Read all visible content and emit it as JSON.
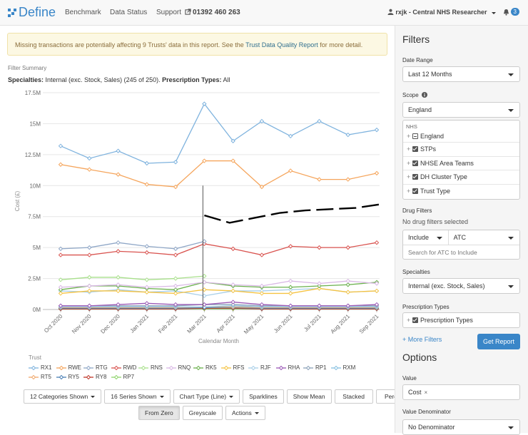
{
  "nav": {
    "brand": "Define",
    "links": [
      "Benchmark",
      "Data Status",
      "Support"
    ],
    "phone": "01392 460 263",
    "user": "rxjk - Central NHS Researcher",
    "notifications": "3"
  },
  "alert": {
    "text_before": "Missing transactions are potentially affecting 9 Trusts' data in this report. See the ",
    "link": "Trust Data Quality Report",
    "text_after": " for more detail."
  },
  "summary": {
    "title": "Filter Summary",
    "specialties_label": "Specialties:",
    "specialties_value": " Internal (exc. Stock, Sales) (245 of 250). ",
    "types_label": "Prescription Types:",
    "types_value": " All"
  },
  "chart_data": {
    "type": "line",
    "xlabel": "Calendar Month",
    "ylabel": "Cost (£)",
    "ylim": [
      0,
      17.5
    ],
    "yticks": [
      "0M",
      "2.5M",
      "5M",
      "7.5M",
      "10M",
      "12.5M",
      "15M",
      "17.5M"
    ],
    "categories": [
      "Oct 2020",
      "Nov 2020",
      "Dec 2020",
      "Jan 2021",
      "Feb 2021",
      "Mar 2021",
      "Apr 2021",
      "May 2021",
      "Jun 2021",
      "Jul 2021",
      "Aug 2021",
      "Sep 2021"
    ],
    "series": [
      {
        "name": "RX1",
        "color": "#7fb3de",
        "values": [
          13.2,
          12.2,
          12.8,
          11.8,
          11.9,
          16.6,
          13.6,
          15.2,
          14.0,
          15.2,
          14.1,
          14.5
        ]
      },
      {
        "name": "RWE",
        "color": "#f5a55c",
        "values": [
          11.7,
          11.3,
          10.9,
          10.1,
          9.9,
          12.0,
          12.0,
          9.9,
          11.2,
          10.5,
          10.5,
          11.0
        ]
      },
      {
        "name": "RTG",
        "color": "#8fa7c7",
        "values": [
          4.9,
          5.0,
          5.4,
          5.1,
          4.9,
          5.5,
          null,
          null,
          null,
          null,
          null,
          null
        ]
      },
      {
        "name": "RWD",
        "color": "#d9534f",
        "values": [
          4.4,
          4.4,
          4.7,
          4.6,
          4.4,
          5.3,
          4.9,
          4.4,
          5.1,
          5.0,
          5.0,
          5.4
        ]
      },
      {
        "name": "RNS",
        "color": "#a8e08b",
        "values": [
          2.4,
          2.6,
          2.6,
          2.4,
          2.5,
          2.7,
          null,
          null,
          null,
          null,
          null,
          null
        ]
      },
      {
        "name": "RNQ",
        "color": "#d9b8e5",
        "values": [
          1.8,
          1.9,
          2.0,
          1.8,
          1.9,
          2.2,
          2.0,
          1.9,
          2.3,
          2.1,
          2.3,
          2.1
        ]
      },
      {
        "name": "RK5",
        "color": "#6ab04c",
        "values": [
          1.6,
          1.9,
          1.9,
          1.7,
          1.6,
          2.2,
          1.9,
          1.8,
          1.8,
          1.9,
          2.0,
          2.2
        ]
      },
      {
        "name": "RFS",
        "color": "#f5c342",
        "values": [
          1.3,
          1.5,
          1.5,
          1.4,
          1.3,
          1.6,
          1.5,
          1.3,
          1.3,
          1.7,
          1.4,
          1.5
        ]
      },
      {
        "name": "RJF",
        "color": "#a9cfe8",
        "values": [
          1.5,
          1.4,
          1.6,
          1.4,
          1.5,
          1.1,
          1.5,
          1.5,
          1.6,
          1.7,
          1.4,
          1.5
        ]
      },
      {
        "name": "RHA",
        "color": "#9b59b6",
        "values": [
          0.3,
          0.3,
          0.4,
          0.5,
          0.4,
          0.4,
          0.6,
          0.4,
          0.3,
          0.3,
          0.3,
          0.4
        ]
      },
      {
        "name": "RP1",
        "color": "#8aa1b8",
        "values": [
          0.3,
          0.3,
          0.3,
          0.3,
          0.3,
          0.4,
          0.4,
          0.3,
          0.3,
          0.3,
          0.3,
          0.3
        ]
      },
      {
        "name": "RXM",
        "color": "#86c0e0",
        "values": [
          0.2,
          0.2,
          0.2,
          0.2,
          0.2,
          0.2,
          0.3,
          0.2,
          0.2,
          0.2,
          0.2,
          0.2
        ]
      },
      {
        "name": "RT5",
        "color": "#f0a86b",
        "values": [
          0.15,
          0.15,
          0.15,
          0.15,
          0.15,
          0.2,
          0.2,
          0.15,
          0.15,
          0.15,
          0.15,
          0.15
        ]
      },
      {
        "name": "RY5",
        "color": "#4a7fb5",
        "values": [
          0.1,
          0.1,
          0.1,
          0.1,
          0.1,
          0.15,
          0.15,
          0.1,
          0.1,
          0.1,
          0.1,
          0.1
        ]
      },
      {
        "name": "RY8",
        "color": "#c0392b",
        "values": [
          0.05,
          0.05,
          0.05,
          0.05,
          0.05,
          0.1,
          0.1,
          0.05,
          0.05,
          0.05,
          0.05,
          0.05
        ]
      },
      {
        "name": "RP7",
        "color": "#8ed46b",
        "values": [
          0.05,
          0.05,
          0.05,
          0.05,
          0.05,
          0.05,
          0.05,
          0.05,
          0.05,
          0.05,
          0.05,
          0.05
        ]
      }
    ],
    "annotation_dashed": [
      7.6,
      7.0,
      7.4,
      7.8,
      8.0,
      8.1,
      8.2,
      8.5
    ],
    "marker_month": "Mar 2021"
  },
  "legend_title": "Trust",
  "buttons": {
    "row1": [
      "12 Categories Shown",
      "16 Series Shown",
      "Chart Type (Line)",
      "Sparklines",
      "Show Mean",
      "Stacked",
      "Percent"
    ],
    "row2": [
      "From Zero",
      "Greyscale",
      "Actions"
    ]
  },
  "sidebar": {
    "filters_title": "Filters",
    "date_range_label": "Date Range",
    "date_range_value": "Last 12 Months",
    "scope_label": "Scope",
    "scope_value": "England",
    "tree_head": "NHS",
    "tree_items": [
      "England",
      "STPs",
      "NHSE Area Teams",
      "DH Cluster Type",
      "Trust Type"
    ],
    "drug_filters_label": "Drug Filters",
    "drug_filters_value": "No drug filters selected",
    "include_value": "Include",
    "atc_value": "ATC",
    "search_placeholder": "Search for ATC to Include",
    "specialties_label": "Specialties",
    "specialties_value": "Internal (exc. Stock, Sales)",
    "prescription_types_label": "Prescription Types",
    "prescription_types_value": "Prescription Types",
    "more_filters": "+ More Filters",
    "get_report": "Get Report",
    "options_title": "Options",
    "value_label": "Value",
    "value_tag": "Cost",
    "value_denominator_label": "Value Denominator",
    "value_denominator_value": "No Denominator"
  }
}
